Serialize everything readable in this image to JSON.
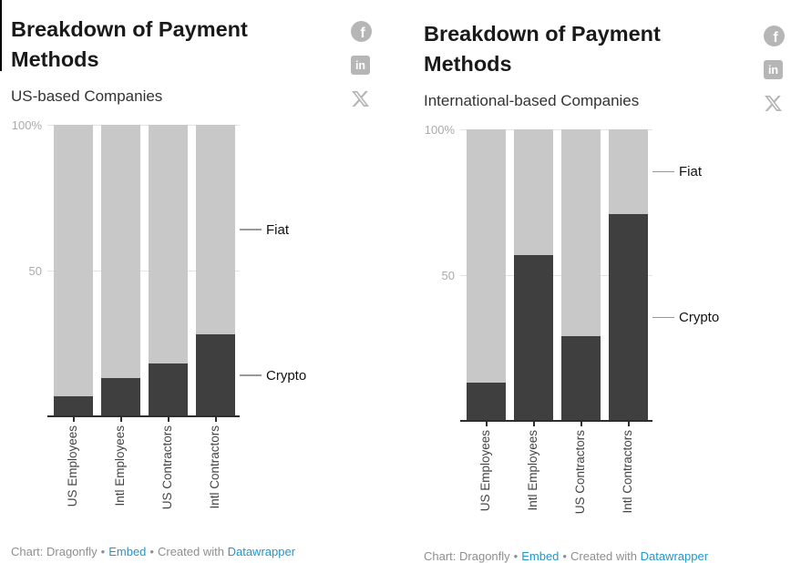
{
  "chart_data": [
    {
      "type": "bar",
      "stacked": true,
      "value_unit": "%",
      "title": "Breakdown of Payment Methods",
      "subtitle": "US-based Companies",
      "categories": [
        "US Employees",
        "Intl Employees",
        "US Contractors",
        "Intl Contractors"
      ],
      "series": [
        {
          "name": "Crypto",
          "color": "#3f3f3f",
          "values": [
            7,
            13,
            18,
            28
          ]
        },
        {
          "name": "Fiat",
          "color": "#c8c8c8",
          "values": [
            93,
            87,
            82,
            72
          ]
        }
      ],
      "ylim": [
        0,
        100
      ],
      "ytick_labels": [
        "100%",
        "50"
      ],
      "grid": "faint horizontal at 50 and 100",
      "legend_position": "right-annotations-on-last-bar"
    },
    {
      "type": "bar",
      "stacked": true,
      "value_unit": "%",
      "title": "Breakdown of Payment Methods",
      "subtitle": "International-based Companies",
      "categories": [
        "US Employees",
        "Intl Employees",
        "US Contractors",
        "Intl Contractors"
      ],
      "series": [
        {
          "name": "Crypto",
          "color": "#3f3f3f",
          "values": [
            13,
            57,
            29,
            71
          ]
        },
        {
          "name": "Fiat",
          "color": "#c8c8c8",
          "values": [
            87,
            43,
            71,
            29
          ]
        }
      ],
      "ylim": [
        0,
        100
      ],
      "ytick_labels": [
        "100%",
        "50"
      ],
      "grid": "faint horizontal at 50 and 100",
      "legend_position": "right-annotations-on-last-bar"
    }
  ],
  "footer": {
    "credit": "Chart: Dragonfly",
    "separator": "•",
    "embed_label": "Embed",
    "created_with": "Created with",
    "datawrapper_label": "Datawrapper",
    "link_color": "#2596c8"
  },
  "social": {
    "facebook_glyph": "f",
    "linkedin_glyph": "in",
    "x_label": "X"
  },
  "colors": {
    "crypto": "#3f3f3f",
    "fiat": "#c8c8c8",
    "axis": "#2e2e2e",
    "grid": "#e3e3e3",
    "y_tick_label": "#aaaaaa",
    "category_label": "#444444",
    "title": "#1a1a1a",
    "subtitle": "#333333",
    "footer_text": "#8f8f8f"
  }
}
